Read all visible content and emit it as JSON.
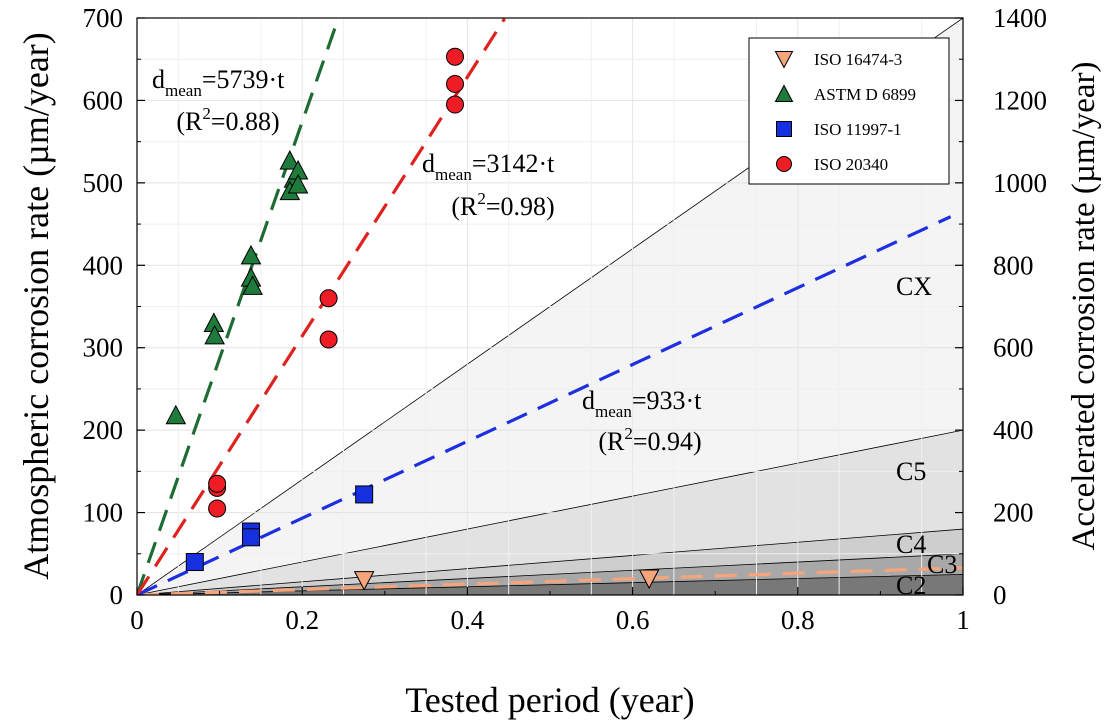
{
  "chart_data": {
    "type": "scatter",
    "xlabel": "Tested period (year)",
    "ylabel": "Atmospheric corrosion rate (µm/year)",
    "y2label": "Accelerated corrosion rate (µm/year)",
    "xlim": [
      0,
      1
    ],
    "ylim": [
      0,
      700
    ],
    "y2lim": [
      0,
      1400
    ],
    "xticks": [
      0,
      0.2,
      0.4,
      0.6,
      0.8,
      1
    ],
    "xtick_labels": [
      "0",
      "0.2",
      "0.4",
      "0.6",
      "0.8",
      "1"
    ],
    "yticks": [
      0,
      100,
      200,
      300,
      400,
      500,
      600,
      700
    ],
    "y2ticks": [
      0,
      200,
      400,
      600,
      800,
      1000,
      1200,
      1400
    ],
    "grid": true,
    "zones": [
      {
        "name": "C2",
        "top_at_x1": 25,
        "color": "#787878"
      },
      {
        "name": "C3",
        "top_at_x1": 50,
        "color": "#a8a8a8"
      },
      {
        "name": "C4",
        "top_at_x1": 80,
        "color": "#cecece"
      },
      {
        "name": "C5",
        "top_at_x1": 200,
        "color": "#e2e2e2"
      },
      {
        "name": "CX",
        "top_at_x1": 700,
        "color": "#f4f4f4"
      }
    ],
    "series": [
      {
        "name": "ISO 16474-3",
        "marker": "triangle-down",
        "color": "#f4a57c",
        "points": [
          [
            0.275,
            18
          ],
          [
            0.62,
            20
          ]
        ],
        "fit": {
          "slope": 33,
          "color": "#f4a57c",
          "xmax": 1.0
        }
      },
      {
        "name": "ASTM D 6899",
        "marker": "triangle-up",
        "color": "#1e7b3c",
        "points": [
          [
            0.047,
            218
          ],
          [
            0.093,
            330
          ],
          [
            0.094,
            315
          ],
          [
            0.138,
            412
          ],
          [
            0.138,
            385
          ],
          [
            0.14,
            375
          ],
          [
            0.185,
            527
          ],
          [
            0.19,
            505
          ],
          [
            0.185,
            490
          ],
          [
            0.195,
            515
          ],
          [
            0.195,
            498
          ]
        ],
        "fit": {
          "slope": 2870,
          "color": "#1e6b34",
          "xmax": 0.244,
          "equation": "d_mean=5739·t",
          "r2": "(R²=0.88)"
        }
      },
      {
        "name": "ISO 11997-1",
        "marker": "square",
        "color": "#1630e0",
        "points": [
          [
            0.07,
            40
          ],
          [
            0.138,
            77
          ],
          [
            0.138,
            70
          ],
          [
            0.275,
            122
          ]
        ],
        "fit": {
          "slope": 466,
          "color": "#1d2fe0",
          "xmax": 0.985,
          "equation": "d_mean=933·t",
          "r2": "(R²=0.94)"
        }
      },
      {
        "name": "ISO 20340",
        "marker": "circle",
        "color": "#ee1c24",
        "points": [
          [
            0.097,
            130
          ],
          [
            0.097,
            135
          ],
          [
            0.097,
            105
          ],
          [
            0.232,
            360
          ],
          [
            0.232,
            310
          ],
          [
            0.385,
            653
          ],
          [
            0.385,
            620
          ],
          [
            0.385,
            595
          ]
        ],
        "fit": {
          "slope": 1571,
          "color": "#e0221e",
          "xmax": 0.445,
          "equation": "d_mean=3142·t",
          "r2": "(R²=0.98)"
        }
      }
    ]
  }
}
